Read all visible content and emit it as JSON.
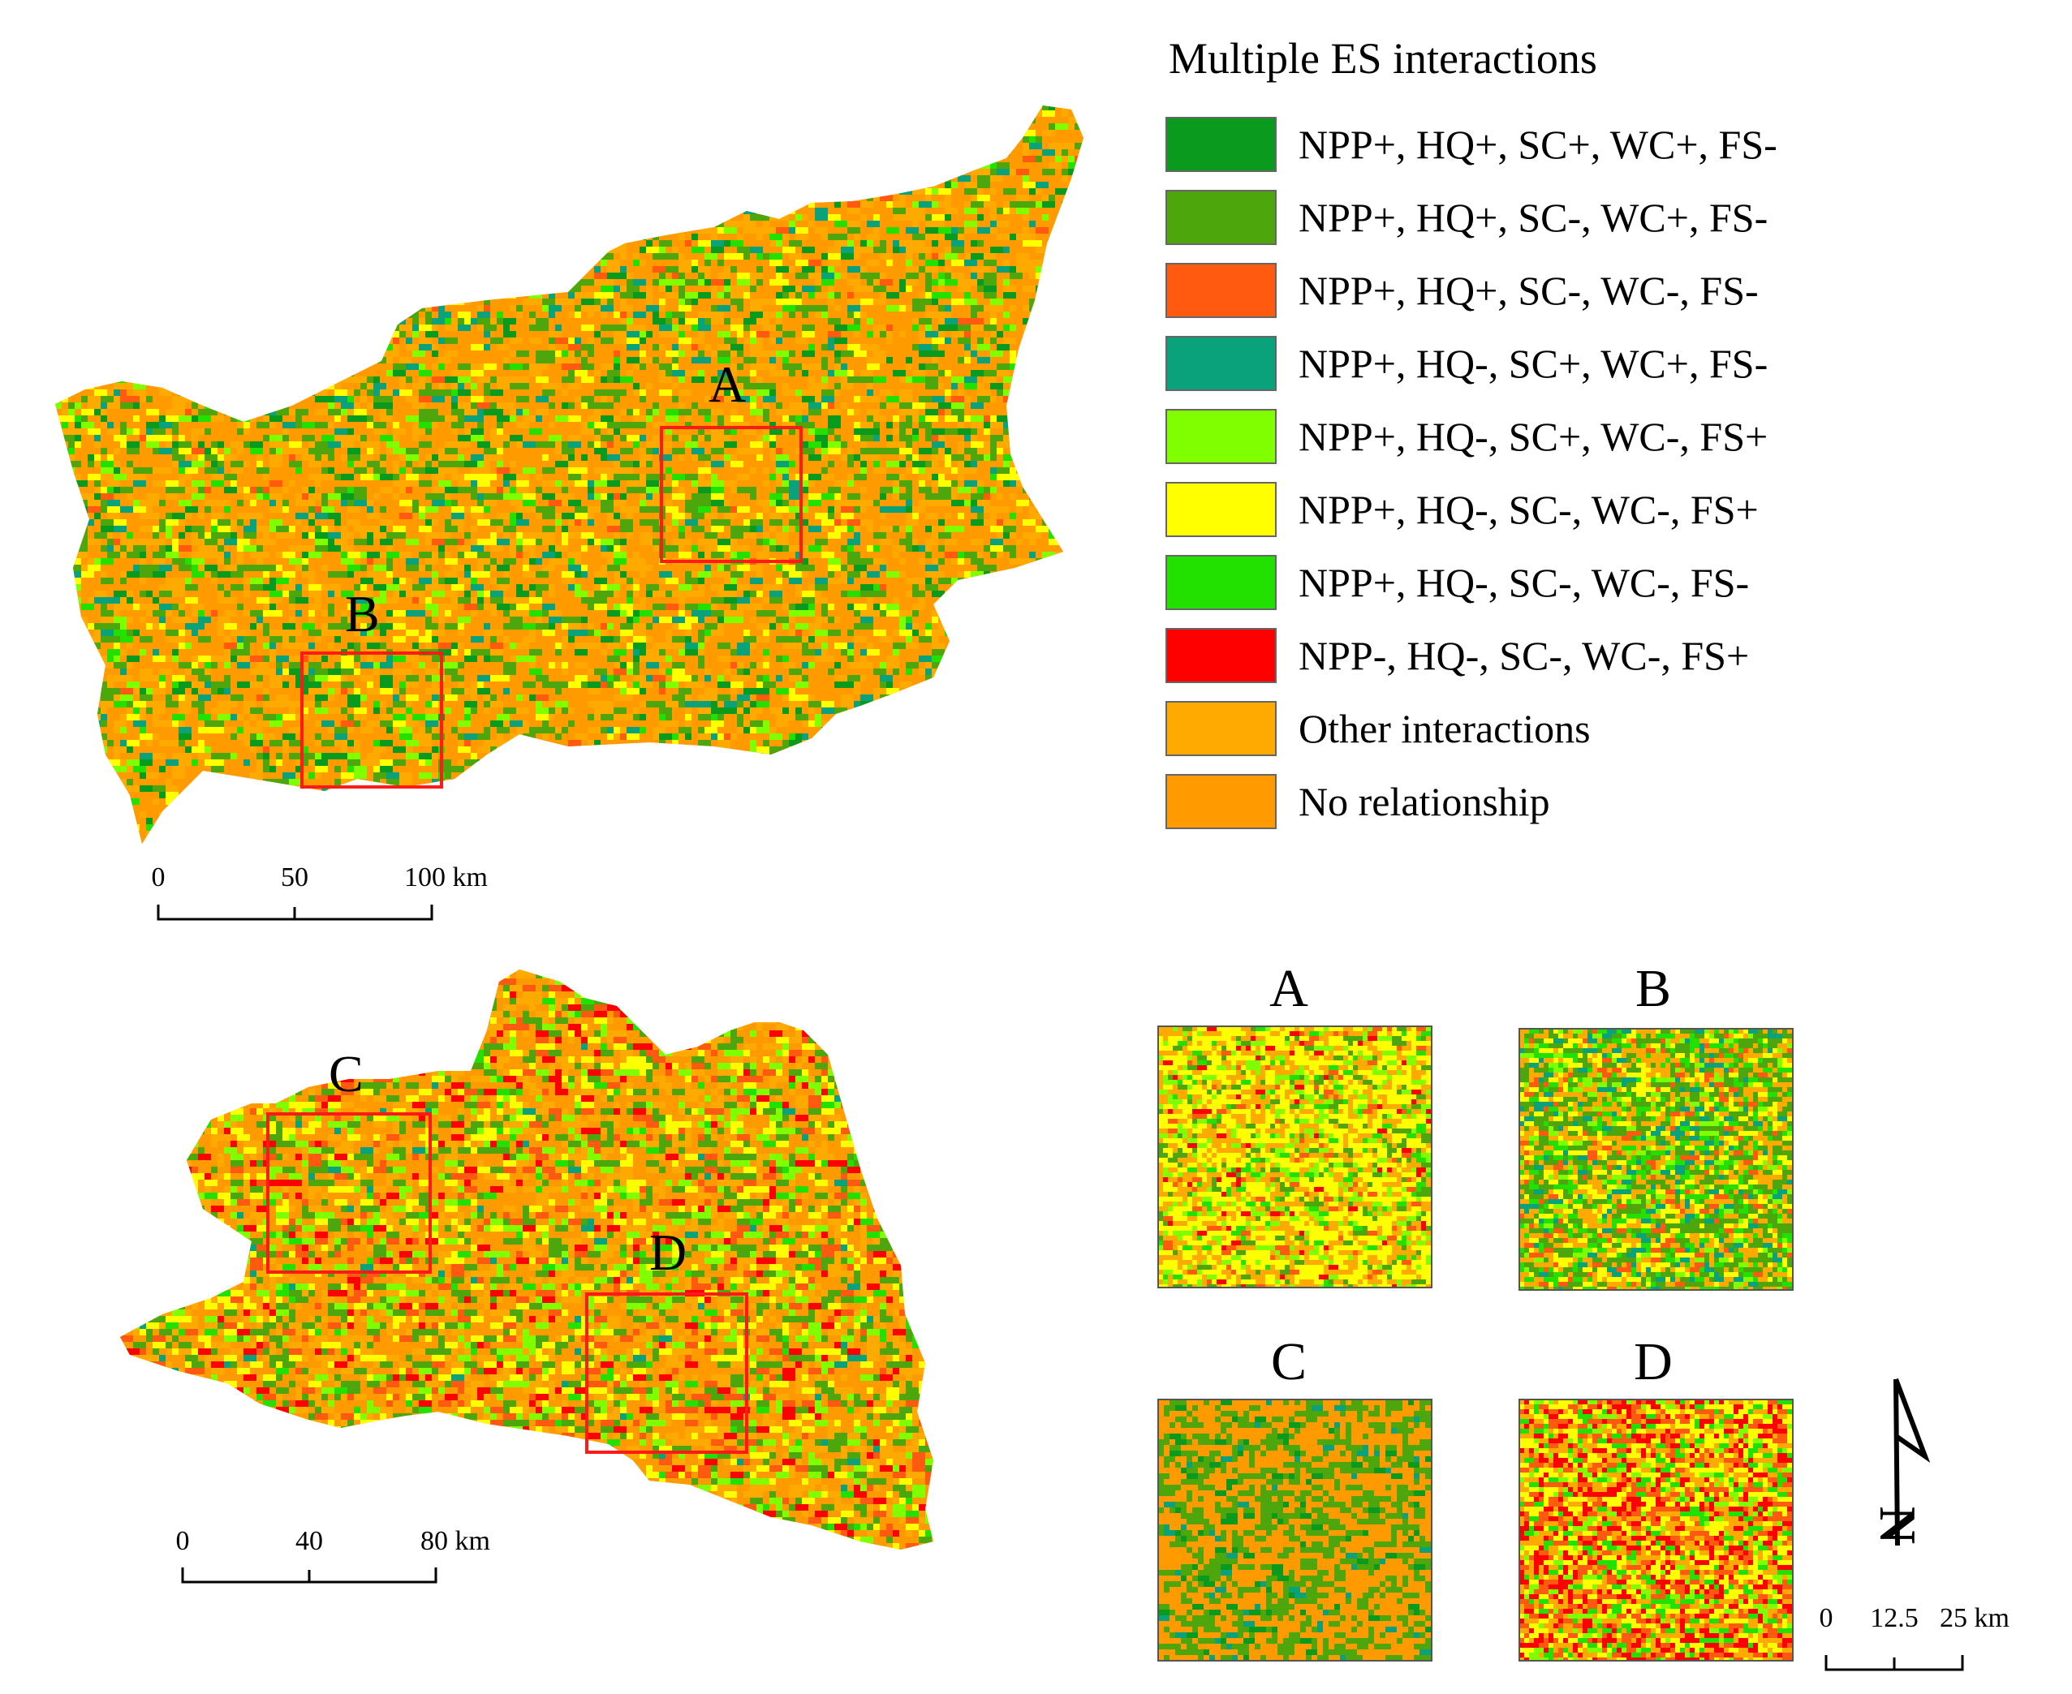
{
  "legend": {
    "title": "Multiple ES interactions",
    "items": [
      {
        "label": "NPP+, HQ+, SC+, WC+, FS-",
        "color": "#0a9a1e"
      },
      {
        "label": "NPP+, HQ+, SC-, WC+, FS-",
        "color": "#4ea60d"
      },
      {
        "label": "NPP+, HQ+, SC-, WC-, FS-",
        "color": "#ff5a10"
      },
      {
        "label": "NPP+, HQ-, SC+, WC+, FS-",
        "color": "#0aa27a"
      },
      {
        "label": "NPP+, HQ-, SC+, WC-, FS+",
        "color": "#80ff00"
      },
      {
        "label": "NPP+, HQ-, SC-, WC-, FS+",
        "color": "#ffff00"
      },
      {
        "label": "NPP+, HQ-, SC-, WC-, FS-",
        "color": "#22e000"
      },
      {
        "label": "NPP-, HQ-, SC-, WC-, FS+",
        "color": "#ff0000"
      },
      {
        "label": "Other interactions",
        "color": "#ffaa00"
      },
      {
        "label": "No relationship",
        "color": "#ff9b00"
      }
    ]
  },
  "maps": {
    "upper": {
      "regions": [
        {
          "label": "A"
        },
        {
          "label": "B"
        }
      ],
      "scalebar": {
        "ticks": [
          "0",
          "50",
          "100 km"
        ]
      }
    },
    "lower": {
      "regions": [
        {
          "label": "C"
        },
        {
          "label": "D"
        }
      ],
      "scalebar": {
        "ticks": [
          "0",
          "40",
          "80 km"
        ]
      }
    }
  },
  "insets": {
    "panels": [
      {
        "label": "A"
      },
      {
        "label": "B"
      },
      {
        "label": "C"
      },
      {
        "label": "D"
      }
    ],
    "scalebar": {
      "ticks": [
        "0",
        "12.5",
        "25 km"
      ]
    }
  },
  "north_arrow": {
    "letter": "N"
  }
}
